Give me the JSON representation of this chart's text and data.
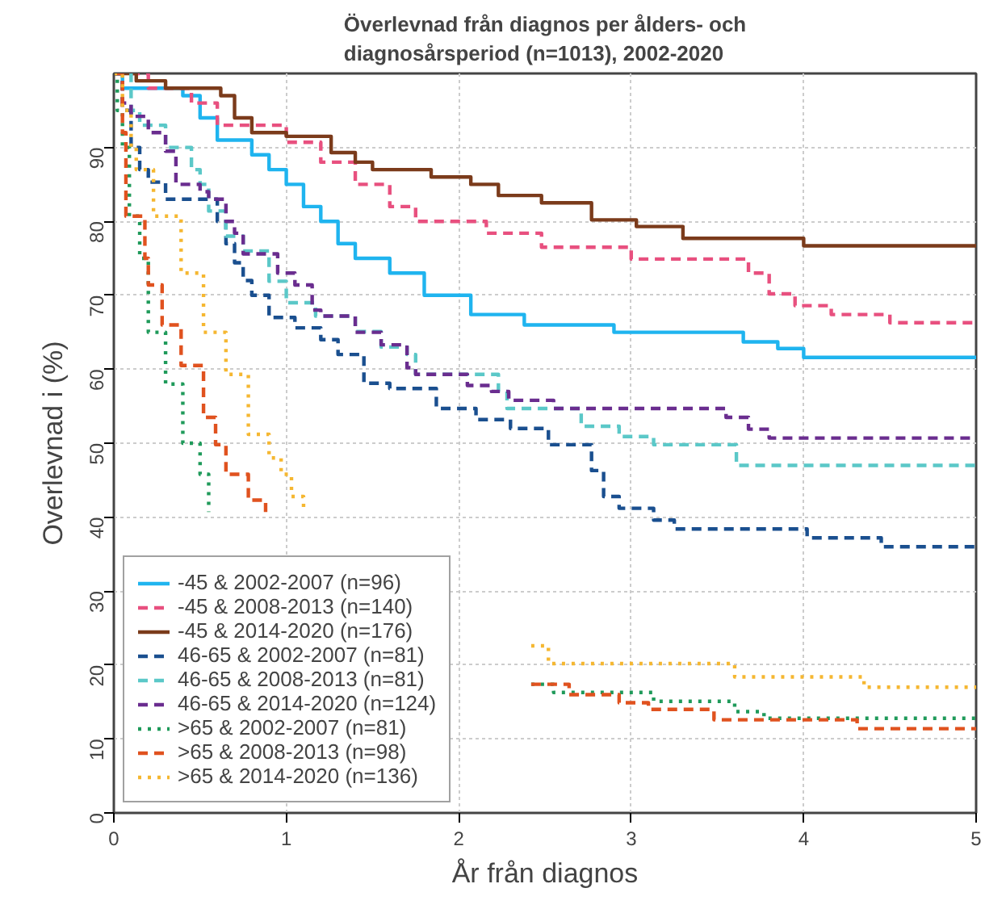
{
  "chart_data": {
    "type": "step",
    "title": "Överlevnad från diagnos per ålders- och\ndiagnosårsperiod (n=1013), 2002-2020",
    "xlabel": "År från diagnos",
    "ylabel": "Overlevnad i (%)",
    "xlim": [
      0,
      5
    ],
    "ylim": [
      0,
      100
    ],
    "xticks": [
      0,
      1,
      2,
      3,
      4,
      5
    ],
    "yticks": [
      0,
      10,
      20,
      30,
      40,
      50,
      60,
      70,
      80,
      90
    ],
    "grid": true,
    "legend": "bottom left",
    "series": [
      {
        "name": "-45 & 2002-2007 (n=96)",
        "color": "#1fb4ef",
        "line_style": "solid",
        "x": [
          0,
          0.05,
          0.4,
          0.5,
          0.6,
          0.8,
          0.9,
          1.0,
          1.1,
          1.2,
          1.3,
          1.4,
          1.6,
          1.8,
          2.07,
          2.38,
          2.9,
          3.65,
          3.85,
          4.0,
          5
        ],
        "values": [
          100,
          98,
          97,
          94,
          91,
          89,
          87,
          85,
          82,
          80,
          77,
          75,
          73,
          70,
          67.4,
          66,
          65,
          63.7,
          62.8,
          61.6,
          61.6
        ]
      },
      {
        "name": "-45 & 2008-2013 (n=140)",
        "color": "#e8507f",
        "line_style": "dashed",
        "x": [
          0,
          0.2,
          0.45,
          0.6,
          1.0,
          1.2,
          1.4,
          1.6,
          1.75,
          2.16,
          2.48,
          3.0,
          3.68,
          3.8,
          3.95,
          4.16,
          4.5,
          5
        ],
        "values": [
          100,
          98,
          96,
          93,
          90.7,
          88,
          85,
          82,
          80,
          78.4,
          76.5,
          74.9,
          73,
          70.2,
          68.6,
          67.4,
          66.3,
          66.3
        ]
      },
      {
        "name": "-45 & 2014-2020 (n=176)",
        "color": "#7b3b1b",
        "line_style": "solid",
        "x": [
          0,
          0.13,
          0.3,
          0.62,
          0.7,
          0.8,
          1.0,
          1.26,
          1.4,
          1.5,
          1.84,
          2.07,
          2.23,
          2.48,
          2.77,
          3.03,
          3.3,
          4.0,
          5
        ],
        "values": [
          100,
          99,
          98,
          97,
          94,
          92,
          91.5,
          89.3,
          88,
          87,
          86,
          85,
          83.5,
          82.5,
          80.2,
          79.3,
          77.7,
          76.7,
          76.7
        ]
      },
      {
        "name": "46-65 & 2002-2007 (n=81)",
        "color": "#1a4f8f",
        "line_style": "dashed",
        "x": [
          0,
          0.05,
          0.1,
          0.15,
          0.2,
          0.3,
          0.6,
          0.65,
          0.7,
          0.75,
          0.8,
          0.9,
          1.05,
          1.2,
          1.3,
          1.45,
          1.6,
          1.87,
          2.1,
          2.3,
          2.52,
          2.77,
          2.84,
          2.93,
          3.13,
          3.25,
          4.02,
          4.45,
          5
        ],
        "values": [
          100,
          95,
          90,
          87,
          85.3,
          83,
          80,
          77,
          74.4,
          72,
          70,
          67,
          65.6,
          64,
          62,
          58.1,
          57.4,
          54.7,
          53.2,
          52,
          49.8,
          46.3,
          42.8,
          41.2,
          39.6,
          38.4,
          37.2,
          36,
          36
        ]
      },
      {
        "name": "46-65 & 2008-2013 (n=81)",
        "color": "#5bc8c8",
        "line_style": "dashed",
        "x": [
          0,
          0.1,
          0.15,
          0.3,
          0.45,
          0.5,
          0.55,
          0.65,
          0.75,
          0.9,
          1.0,
          1.17,
          1.4,
          1.55,
          1.7,
          1.75,
          2.23,
          2.28,
          2.71,
          2.93,
          3.13,
          3.61,
          5
        ],
        "values": [
          100,
          95,
          93,
          90,
          87,
          85,
          81.4,
          78,
          76,
          71.9,
          69,
          67.2,
          65.1,
          63,
          62,
          59.3,
          57,
          54.7,
          52.3,
          50.9,
          49.8,
          47,
          47
        ]
      },
      {
        "name": "46-65 & 2014-2020 (n=124)",
        "color": "#6a2d8f",
        "line_style": "dashed",
        "x": [
          0,
          0.05,
          0.1,
          0.2,
          0.3,
          0.36,
          0.5,
          0.55,
          0.65,
          0.7,
          0.75,
          0.95,
          1.05,
          1.15,
          1.2,
          1.4,
          1.55,
          1.7,
          1.75,
          2.05,
          2.19,
          2.29,
          2.55,
          3.55,
          3.68,
          3.8,
          5
        ],
        "values": [
          100,
          96,
          94.2,
          92,
          89.5,
          85,
          84,
          83,
          80,
          78.4,
          75.6,
          73,
          71.4,
          68,
          67.2,
          65,
          63.3,
          60.2,
          59.3,
          57.8,
          57,
          55.8,
          54.7,
          53.5,
          51.9,
          50.7,
          50.7
        ]
      },
      {
        "name": ">65 & 2002-2007 (n=81)",
        "color": "#1f9a5a",
        "line_style": "dotted",
        "x": [
          0,
          0.02,
          0.05,
          0.09,
          0.15,
          0.2,
          0.3,
          0.4,
          0.5,
          0.55,
          1.5,
          2.42,
          2.55,
          3.13,
          3.6,
          3.77,
          5
        ],
        "values": [
          100,
          95,
          90,
          80.7,
          75,
          65,
          58,
          50,
          45.8,
          40.7,
          null,
          17.4,
          16.3,
          15.1,
          13.7,
          12.8,
          12.8
        ]
      },
      {
        "name": ">65 & 2008-2013 (n=98)",
        "color": "#e0521f",
        "line_style": "dashed",
        "x": [
          0,
          0.05,
          0.07,
          0.18,
          0.2,
          0.28,
          0.39,
          0.52,
          0.59,
          0.65,
          0.78,
          0.88,
          1.5,
          2.42,
          2.64,
          2.93,
          3.1,
          3.48,
          4.31,
          5
        ],
        "values": [
          100,
          92,
          80.7,
          75,
          71.4,
          66,
          60.5,
          53.5,
          49.8,
          45.8,
          42.3,
          40.7,
          null,
          17.4,
          16,
          14.9,
          14,
          12.6,
          11.4,
          11.4
        ]
      },
      {
        "name": ">65 & 2014-2020 (n=136)",
        "color": "#f5b731",
        "line_style": "dotted",
        "x": [
          0,
          0.05,
          0.1,
          0.13,
          0.23,
          0.39,
          0.52,
          0.65,
          0.78,
          0.9,
          0.97,
          1.03,
          1.1,
          1.7,
          2.42,
          2.52,
          3.6,
          4.35,
          5
        ],
        "values": [
          100,
          95,
          90,
          87,
          80.7,
          73,
          65,
          59.3,
          51.2,
          48,
          45.8,
          42.8,
          40.7,
          null,
          22.6,
          20.2,
          18.4,
          17,
          17
        ]
      }
    ]
  }
}
